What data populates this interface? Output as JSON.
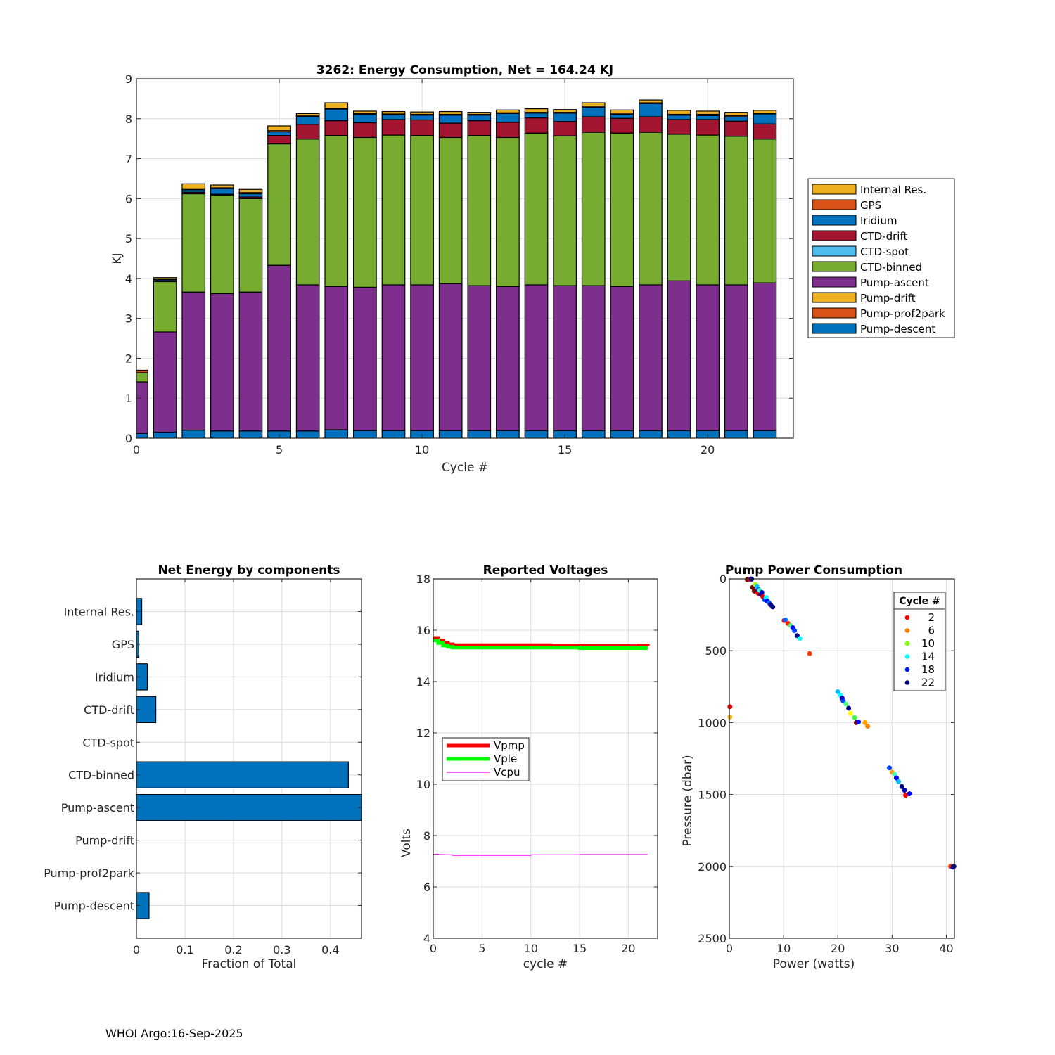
{
  "footer": "WHOI Argo:16-Sep-2025",
  "chart_data": [
    {
      "id": "energy",
      "type": "bar",
      "stacked": true,
      "title": "3262: Energy Consumption,  Net = 164.24 KJ",
      "xlabel": "Cycle #",
      "ylabel": "KJ",
      "xlim": [
        0,
        23
      ],
      "ylim": [
        0,
        9
      ],
      "xticks": [
        0,
        5,
        10,
        15,
        20
      ],
      "yticks": [
        0,
        1,
        2,
        3,
        4,
        5,
        6,
        7,
        8,
        9
      ],
      "grid": true,
      "legend_position": "outside-right",
      "categories": [
        0,
        1,
        2,
        3,
        4,
        5,
        6,
        7,
        8,
        9,
        10,
        11,
        12,
        13,
        14,
        15,
        16,
        17,
        18,
        19,
        20,
        21,
        22
      ],
      "series": [
        {
          "name": "Pump-descent",
          "color": "#0072BD",
          "values": [
            0.12,
            0.15,
            0.2,
            0.18,
            0.18,
            0.18,
            0.18,
            0.21,
            0.19,
            0.19,
            0.19,
            0.19,
            0.19,
            0.19,
            0.19,
            0.19,
            0.19,
            0.19,
            0.19,
            0.19,
            0.19,
            0.19,
            0.19
          ]
        },
        {
          "name": "Pump-prof2park",
          "color": "#D95319",
          "values": [
            0,
            0,
            0,
            0,
            0,
            0,
            0,
            0,
            0,
            0,
            0,
            0,
            0,
            0,
            0,
            0,
            0,
            0,
            0,
            0,
            0,
            0,
            0
          ]
        },
        {
          "name": "Pump-drift",
          "color": "#EDB120",
          "values": [
            0,
            0,
            0,
            0,
            0,
            0,
            0,
            0,
            0,
            0,
            0,
            0,
            0,
            0,
            0,
            0,
            0,
            0,
            0,
            0,
            0,
            0,
            0
          ]
        },
        {
          "name": "Pump-ascent",
          "color": "#7E2F8E",
          "values": [
            1.29,
            2.51,
            3.46,
            3.44,
            3.48,
            4.15,
            3.66,
            3.59,
            3.59,
            3.65,
            3.65,
            3.68,
            3.63,
            3.61,
            3.65,
            3.63,
            3.63,
            3.61,
            3.65,
            3.75,
            3.65,
            3.65,
            3.7
          ]
        },
        {
          "name": "CTD-binned",
          "color": "#77AC30",
          "values": [
            0.23,
            1.26,
            2.46,
            2.47,
            2.34,
            3.04,
            3.65,
            3.78,
            3.75,
            3.75,
            3.74,
            3.66,
            3.76,
            3.73,
            3.8,
            3.75,
            3.84,
            3.84,
            3.82,
            3.67,
            3.75,
            3.72,
            3.6
          ]
        },
        {
          "name": "CTD-spot",
          "color": "#4DBEEE",
          "values": [
            0,
            0,
            0,
            0,
            0,
            0,
            0,
            0,
            0,
            0,
            0,
            0,
            0,
            0,
            0,
            0,
            0,
            0,
            0,
            0,
            0,
            0,
            0
          ]
        },
        {
          "name": "CTD-drift",
          "color": "#A2142F",
          "values": [
            0,
            0.02,
            0.04,
            0.02,
            0.04,
            0.21,
            0.37,
            0.37,
            0.37,
            0.39,
            0.39,
            0.36,
            0.37,
            0.38,
            0.38,
            0.36,
            0.39,
            0.37,
            0.39,
            0.37,
            0.39,
            0.38,
            0.38
          ]
        },
        {
          "name": "Iridium",
          "color": "#0072BD",
          "values": [
            0,
            0.03,
            0.06,
            0.14,
            0.08,
            0.09,
            0.19,
            0.29,
            0.21,
            0.12,
            0.12,
            0.2,
            0.14,
            0.22,
            0.12,
            0.21,
            0.24,
            0.1,
            0.33,
            0.11,
            0.1,
            0.11,
            0.25
          ]
        },
        {
          "name": "GPS",
          "color": "#D95319",
          "values": [
            0.06,
            0.02,
            0.01,
            0.02,
            0.03,
            0.03,
            0.02,
            0.02,
            0.02,
            0.02,
            0.02,
            0.02,
            0.02,
            0.02,
            0.02,
            0.02,
            0.03,
            0.03,
            0.02,
            0.02,
            0.03,
            0.03,
            0.02
          ]
        },
        {
          "name": "Internal Res.",
          "color": "#EDB120",
          "values": [
            0,
            0.03,
            0.14,
            0.07,
            0.08,
            0.12,
            0.06,
            0.14,
            0.06,
            0.06,
            0.06,
            0.07,
            0.05,
            0.07,
            0.09,
            0.07,
            0.08,
            0.08,
            0.07,
            0.1,
            0.08,
            0.08,
            0.07
          ]
        }
      ],
      "legend_order": [
        "Internal Res.",
        "GPS",
        "Iridium",
        "CTD-drift",
        "CTD-spot",
        "CTD-binned",
        "Pump-ascent",
        "Pump-drift",
        "Pump-prof2park",
        "Pump-descent"
      ]
    },
    {
      "id": "fraction",
      "type": "bar",
      "orientation": "horizontal",
      "title": "Net Energy by components",
      "xlabel": "Fraction of Total",
      "ylabel": "",
      "xlim": [
        0,
        0.464
      ],
      "xticks": [
        0,
        0.1,
        0.2,
        0.3,
        0.4
      ],
      "xticklabels": [
        "0",
        "0.1",
        "0.2",
        "0.3",
        "0.4"
      ],
      "grid": true,
      "color": "#0072BD",
      "categories": [
        "Internal Res.",
        "GPS",
        "Iridium",
        "CTD-drift",
        "CTD-spot",
        "CTD-binned",
        "Pump-ascent",
        "Pump-drift",
        "Pump-prof2park",
        "Pump-descent"
      ],
      "values": [
        0.011,
        0.005,
        0.0225,
        0.04,
        0,
        0.437,
        0.464,
        0,
        0,
        0.026
      ]
    },
    {
      "id": "voltages",
      "type": "line",
      "title": "Reported Voltages",
      "xlabel": "cycle #",
      "ylabel": "Volts",
      "xlim": [
        0,
        23
      ],
      "ylim": [
        4,
        18
      ],
      "xticks": [
        0,
        5,
        10,
        15,
        20
      ],
      "yticks": [
        4,
        6,
        8,
        10,
        12,
        14,
        16,
        18
      ],
      "grid": true,
      "legend_position": "left-middle",
      "x": [
        0,
        0.5,
        1,
        1.5,
        2,
        3,
        5,
        10,
        12,
        15,
        18,
        20,
        21,
        22
      ],
      "series": [
        {
          "name": "Vpmp",
          "color": "#FF0000",
          "width": "thick",
          "values": [
            15.7,
            15.6,
            15.5,
            15.45,
            15.42,
            15.42,
            15.42,
            15.42,
            15.4,
            15.4,
            15.4,
            15.38,
            15.4,
            15.38
          ]
        },
        {
          "name": "Vple",
          "color": "#00FF00",
          "width": "thick",
          "values": [
            15.6,
            15.5,
            15.4,
            15.35,
            15.32,
            15.32,
            15.32,
            15.32,
            15.32,
            15.3,
            15.3,
            15.3,
            15.3,
            15.3
          ]
        },
        {
          "name": "Vcpu",
          "color": "#FF00FF",
          "width": "thin",
          "values": [
            7.27,
            7.26,
            7.25,
            7.25,
            7.23,
            7.23,
            7.23,
            7.25,
            7.25,
            7.26,
            7.26,
            7.26,
            7.26,
            7.26
          ]
        }
      ]
    },
    {
      "id": "pump",
      "type": "scatter",
      "title": "Pump Power Consumption",
      "xlabel": "Power (watts)",
      "ylabel": "Pressure (dbar)",
      "xlim": [
        0,
        41.5
      ],
      "ylim": [
        0,
        2500
      ],
      "yreversed": true,
      "xticks": [
        0,
        10,
        20,
        30,
        40
      ],
      "yticks": [
        0,
        500,
        1000,
        1500,
        2000,
        2500
      ],
      "grid": true,
      "legend_title": "Cycle #",
      "legend_position": "top-right",
      "legend": [
        {
          "label": "2",
          "color": "#FF0000"
        },
        {
          "label": "6",
          "color": "#FF8000"
        },
        {
          "label": "10",
          "color": "#80FF00"
        },
        {
          "label": "14",
          "color": "#00FFFF"
        },
        {
          "label": "18",
          "color": "#0020FF"
        },
        {
          "label": "22",
          "color": "#000080"
        }
      ],
      "points": [
        {
          "x": 3.3,
          "y": 5,
          "color": "#800000"
        },
        {
          "x": 3.7,
          "y": 3,
          "color": "#FF0000"
        },
        {
          "x": 4.0,
          "y": 0,
          "color": "#0040FF"
        },
        {
          "x": 4.1,
          "y": 2,
          "color": "#000080"
        },
        {
          "x": 4.3,
          "y": 60,
          "color": "#800000"
        },
        {
          "x": 4.6,
          "y": 85,
          "color": "#800000"
        },
        {
          "x": 4.8,
          "y": 40,
          "color": "#A0FF00"
        },
        {
          "x": 5.1,
          "y": 55,
          "color": "#00C0FF"
        },
        {
          "x": 5.3,
          "y": 100,
          "color": "#FF0000"
        },
        {
          "x": 5.4,
          "y": 75,
          "color": "#0040FF"
        },
        {
          "x": 5.6,
          "y": 80,
          "color": "#40FFC0"
        },
        {
          "x": 5.8,
          "y": 110,
          "color": "#000080"
        },
        {
          "x": 6.0,
          "y": 95,
          "color": "#0000C0"
        },
        {
          "x": 6.2,
          "y": 125,
          "color": "#FF0000"
        },
        {
          "x": 6.5,
          "y": 145,
          "color": "#0040FF"
        },
        {
          "x": 6.8,
          "y": 130,
          "color": "#00FFFF"
        },
        {
          "x": 7.0,
          "y": 155,
          "color": "#0000FF"
        },
        {
          "x": 7.3,
          "y": 165,
          "color": "#0060FF"
        },
        {
          "x": 7.6,
          "y": 180,
          "color": "#000080"
        },
        {
          "x": 8.0,
          "y": 195,
          "color": "#000080"
        },
        {
          "x": 10.1,
          "y": 290,
          "color": "#FF0000"
        },
        {
          "x": 10.3,
          "y": 285,
          "color": "#0060FF"
        },
        {
          "x": 10.8,
          "y": 310,
          "color": "#FF2000"
        },
        {
          "x": 11.3,
          "y": 325,
          "color": "#40FF80"
        },
        {
          "x": 11.7,
          "y": 340,
          "color": "#0000FF"
        },
        {
          "x": 12.0,
          "y": 360,
          "color": "#0040FF"
        },
        {
          "x": 12.5,
          "y": 395,
          "color": "#000080"
        },
        {
          "x": 13.0,
          "y": 415,
          "color": "#00FFFF"
        },
        {
          "x": 14.8,
          "y": 520,
          "color": "#FF4000"
        },
        {
          "x": 0.1,
          "y": 890,
          "color": "#FF0000"
        },
        {
          "x": 0.1,
          "y": 960,
          "color": "#FFB000"
        },
        {
          "x": 20.0,
          "y": 785,
          "color": "#00C0FF"
        },
        {
          "x": 20.5,
          "y": 810,
          "color": "#00FFFF"
        },
        {
          "x": 20.8,
          "y": 830,
          "color": "#0000C0"
        },
        {
          "x": 21.0,
          "y": 850,
          "color": "#0040FF"
        },
        {
          "x": 21.5,
          "y": 870,
          "color": "#40FF80"
        },
        {
          "x": 22.0,
          "y": 900,
          "color": "#000080"
        },
        {
          "x": 22.3,
          "y": 935,
          "color": "#FFFF00"
        },
        {
          "x": 23.1,
          "y": 965,
          "color": "#40FF40"
        },
        {
          "x": 23.4,
          "y": 1000,
          "color": "#800000"
        },
        {
          "x": 23.8,
          "y": 995,
          "color": "#0000FF"
        },
        {
          "x": 25.0,
          "y": 1000,
          "color": "#FFA000"
        },
        {
          "x": 25.5,
          "y": 1025,
          "color": "#FF8000"
        },
        {
          "x": 29.5,
          "y": 1315,
          "color": "#0040FF"
        },
        {
          "x": 30.0,
          "y": 1345,
          "color": "#FFA000"
        },
        {
          "x": 30.5,
          "y": 1360,
          "color": "#40FFC0"
        },
        {
          "x": 30.8,
          "y": 1385,
          "color": "#0000FF"
        },
        {
          "x": 31.2,
          "y": 1410,
          "color": "#00C0FF"
        },
        {
          "x": 31.8,
          "y": 1445,
          "color": "#000080"
        },
        {
          "x": 32.3,
          "y": 1470,
          "color": "#0000C0"
        },
        {
          "x": 32.5,
          "y": 1505,
          "color": "#FF0000"
        },
        {
          "x": 33.2,
          "y": 1495,
          "color": "#0000FF"
        },
        {
          "x": 40.8,
          "y": 2000,
          "color": "#FF4000"
        },
        {
          "x": 41.2,
          "y": 2005,
          "color": "#0000FF"
        },
        {
          "x": 41.4,
          "y": 2000,
          "color": "#000080"
        }
      ]
    }
  ]
}
